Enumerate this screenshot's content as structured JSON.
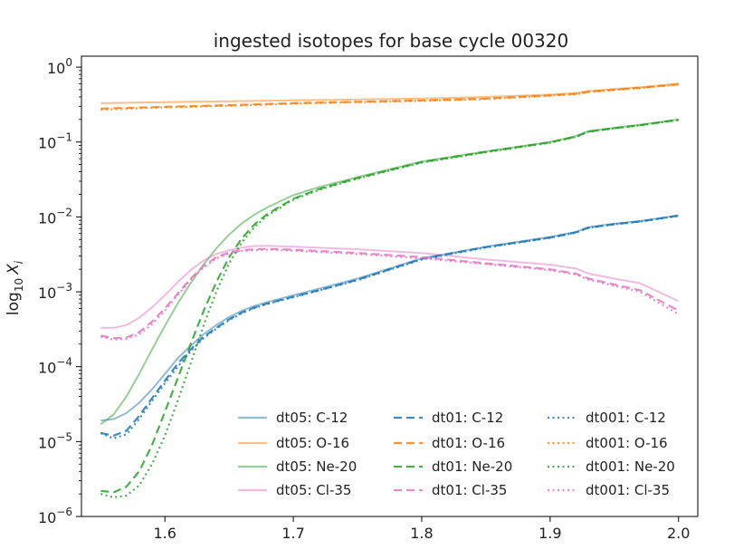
{
  "chart_data": {
    "type": "line",
    "title": "ingested isotopes for base cycle 00320",
    "xlabel": "",
    "ylabel": "log",
    "ylabel_sub": "10",
    "ylabel_var": "X",
    "ylabel_var_sub": "i",
    "yscale": "log",
    "xlim": [
      1.535,
      2.015
    ],
    "ylim": [
      1e-06,
      1.4
    ],
    "xticks": [
      1.6,
      1.7,
      1.8,
      1.9,
      2.0
    ],
    "xtick_labels": [
      "1.6",
      "1.7",
      "1.8",
      "1.9",
      "2.0"
    ],
    "yticks": [
      {
        "value": 1e-06,
        "base": "10",
        "exp": "−6"
      },
      {
        "value": 1e-05,
        "base": "10",
        "exp": "−5"
      },
      {
        "value": 0.0001,
        "base": "10",
        "exp": "−4"
      },
      {
        "value": 0.001,
        "base": "10",
        "exp": "−3"
      },
      {
        "value": 0.01,
        "base": "10",
        "exp": "−2"
      },
      {
        "value": 0.1,
        "base": "10",
        "exp": "−1"
      },
      {
        "value": 1,
        "base": "10",
        "exp": "0"
      }
    ],
    "grid": false,
    "legend_position": "lower-right",
    "legend_columns": 3,
    "colors": {
      "C-12": "#1f77b4",
      "O-16": "#ff7f0e",
      "Ne-20": "#2ca02c",
      "Cl-35": "#e377c2"
    },
    "styles": {
      "dt05": "solid",
      "dt01": "dashed",
      "dt001": "dotted"
    },
    "series": [
      {
        "name": "dt05: C-12",
        "run": "dt05",
        "isotope": "C-12",
        "x": [
          1.55,
          1.56,
          1.57,
          1.58,
          1.59,
          1.6,
          1.61,
          1.62,
          1.63,
          1.64,
          1.65,
          1.66,
          1.67,
          1.68,
          1.7,
          1.72,
          1.75,
          1.8,
          1.85,
          1.9,
          1.92,
          1.93,
          1.95,
          1.97,
          2.0
        ],
        "y": [
          1.9e-05,
          2e-05,
          2.4e-05,
          3.3e-05,
          5e-05,
          8e-05,
          0.00013,
          0.00019,
          0.00027,
          0.00036,
          0.00046,
          0.00056,
          0.00065,
          0.00073,
          0.0009,
          0.0011,
          0.0015,
          0.0028,
          0.004,
          0.0054,
          0.0063,
          0.0073,
          0.0081,
          0.0088,
          0.0105
        ]
      },
      {
        "name": "dt05: O-16",
        "run": "dt05",
        "isotope": "O-16",
        "x": [
          1.55,
          1.6,
          1.65,
          1.7,
          1.75,
          1.8,
          1.85,
          1.9,
          1.92,
          1.93,
          1.95,
          1.97,
          2.0
        ],
        "y": [
          0.33,
          0.34,
          0.35,
          0.36,
          0.37,
          0.38,
          0.4,
          0.43,
          0.45,
          0.48,
          0.51,
          0.54,
          0.6
        ]
      },
      {
        "name": "dt05: Ne-20",
        "run": "dt05",
        "isotope": "Ne-20",
        "x": [
          1.55,
          1.56,
          1.57,
          1.58,
          1.59,
          1.6,
          1.61,
          1.62,
          1.63,
          1.64,
          1.65,
          1.66,
          1.67,
          1.68,
          1.7,
          1.72,
          1.75,
          1.8,
          1.85,
          1.9,
          1.92,
          1.93,
          1.95,
          1.97,
          2.0
        ],
        "y": [
          1.7e-05,
          2.3e-05,
          4e-05,
          8e-05,
          0.00017,
          0.00035,
          0.0007,
          0.0013,
          0.0023,
          0.0038,
          0.0058,
          0.0082,
          0.0108,
          0.0135,
          0.0195,
          0.025,
          0.034,
          0.055,
          0.075,
          0.1,
          0.12,
          0.14,
          0.155,
          0.17,
          0.2
        ]
      },
      {
        "name": "dt05: Cl-35",
        "run": "dt05",
        "isotope": "Cl-35",
        "x": [
          1.55,
          1.56,
          1.57,
          1.58,
          1.59,
          1.6,
          1.61,
          1.62,
          1.63,
          1.64,
          1.65,
          1.66,
          1.67,
          1.68,
          1.7,
          1.75,
          1.8,
          1.85,
          1.9,
          1.92,
          1.93,
          1.95,
          1.97,
          2.0
        ],
        "y": [
          0.00033,
          0.00033,
          0.00036,
          0.00045,
          0.00062,
          0.0009,
          0.00135,
          0.00195,
          0.0026,
          0.0032,
          0.0036,
          0.0039,
          0.0041,
          0.0041,
          0.004,
          0.0037,
          0.0033,
          0.0027,
          0.0023,
          0.00205,
          0.00175,
          0.0015,
          0.0013,
          0.00075
        ]
      },
      {
        "name": "dt01: C-12",
        "run": "dt01",
        "isotope": "C-12",
        "x": [
          1.55,
          1.56,
          1.57,
          1.58,
          1.59,
          1.6,
          1.61,
          1.62,
          1.63,
          1.64,
          1.65,
          1.66,
          1.67,
          1.68,
          1.7,
          1.72,
          1.75,
          1.8,
          1.85,
          1.9,
          1.92,
          1.93,
          1.95,
          1.97,
          2.0
        ],
        "y": [
          1.3e-05,
          1.2e-05,
          1.4e-05,
          2.2e-05,
          3.8e-05,
          6.5e-05,
          0.00011,
          0.00017,
          0.00025,
          0.00033,
          0.00043,
          0.00053,
          0.00062,
          0.0007,
          0.00086,
          0.00105,
          0.00145,
          0.00275,
          0.00395,
          0.0053,
          0.0062,
          0.0072,
          0.008,
          0.0087,
          0.0104
        ]
      },
      {
        "name": "dt01: O-16",
        "run": "dt01",
        "isotope": "O-16",
        "x": [
          1.55,
          1.6,
          1.65,
          1.7,
          1.75,
          1.8,
          1.85,
          1.9,
          1.92,
          1.93,
          1.95,
          1.97,
          2.0
        ],
        "y": [
          0.28,
          0.295,
          0.31,
          0.33,
          0.345,
          0.36,
          0.38,
          0.42,
          0.44,
          0.47,
          0.5,
          0.53,
          0.59
        ]
      },
      {
        "name": "dt01: Ne-20",
        "run": "dt01",
        "isotope": "Ne-20",
        "x": [
          1.55,
          1.56,
          1.57,
          1.58,
          1.59,
          1.6,
          1.61,
          1.62,
          1.63,
          1.64,
          1.65,
          1.66,
          1.67,
          1.68,
          1.7,
          1.72,
          1.75,
          1.8,
          1.85,
          1.9,
          1.92,
          1.93,
          1.95,
          1.97,
          2.0
        ],
        "y": [
          2.2e-06,
          2.1e-06,
          2.5e-06,
          4e-06,
          9e-06,
          2.5e-05,
          7e-05,
          0.0002,
          0.00055,
          0.00135,
          0.0029,
          0.0052,
          0.008,
          0.011,
          0.0175,
          0.0235,
          0.033,
          0.054,
          0.074,
          0.099,
          0.118,
          0.138,
          0.153,
          0.168,
          0.198
        ]
      },
      {
        "name": "dt01: Cl-35",
        "run": "dt01",
        "isotope": "Cl-35",
        "x": [
          1.55,
          1.56,
          1.57,
          1.58,
          1.59,
          1.6,
          1.61,
          1.62,
          1.63,
          1.64,
          1.65,
          1.66,
          1.67,
          1.68,
          1.7,
          1.75,
          1.8,
          1.85,
          1.9,
          1.92,
          1.93,
          1.95,
          1.97,
          2.0
        ],
        "y": [
          0.00026,
          0.00024,
          0.000245,
          0.00029,
          0.0004,
          0.0006,
          0.00095,
          0.0015,
          0.0022,
          0.0029,
          0.00335,
          0.0036,
          0.0037,
          0.00375,
          0.00365,
          0.0033,
          0.0029,
          0.0024,
          0.002,
          0.00175,
          0.0015,
          0.00125,
          0.00105,
          0.00056
        ]
      },
      {
        "name": "dt001: C-12",
        "run": "dt001",
        "isotope": "C-12",
        "x": [
          1.55,
          1.56,
          1.57,
          1.58,
          1.59,
          1.6,
          1.61,
          1.62,
          1.63,
          1.64,
          1.65,
          1.66,
          1.67,
          1.68,
          1.7,
          1.72,
          1.75,
          1.8,
          1.85,
          1.9,
          1.92,
          1.93,
          1.95,
          1.97,
          2.0
        ],
        "y": [
          1.3e-05,
          1.1e-05,
          1.25e-05,
          2e-05,
          3.5e-05,
          6e-05,
          0.0001,
          0.00016,
          0.00024,
          0.00032,
          0.00042,
          0.00052,
          0.00061,
          0.00069,
          0.00085,
          0.00104,
          0.00143,
          0.0027,
          0.0039,
          0.00525,
          0.00615,
          0.00715,
          0.00795,
          0.00865,
          0.0103
        ]
      },
      {
        "name": "dt001: O-16",
        "run": "dt001",
        "isotope": "O-16",
        "x": [
          1.55,
          1.6,
          1.65,
          1.7,
          1.75,
          1.8,
          1.85,
          1.9,
          1.92,
          1.93,
          1.95,
          1.97,
          2.0
        ],
        "y": [
          0.27,
          0.29,
          0.305,
          0.325,
          0.34,
          0.355,
          0.375,
          0.415,
          0.435,
          0.465,
          0.495,
          0.525,
          0.585
        ]
      },
      {
        "name": "dt001: Ne-20",
        "run": "dt001",
        "isotope": "Ne-20",
        "x": [
          1.55,
          1.56,
          1.57,
          1.58,
          1.59,
          1.6,
          1.61,
          1.62,
          1.63,
          1.64,
          1.65,
          1.66,
          1.67,
          1.68,
          1.7,
          1.72,
          1.75,
          1.8,
          1.85,
          1.9,
          1.92,
          1.93,
          1.95,
          1.97,
          2.0
        ],
        "y": [
          2e-06,
          1.8e-06,
          1.9e-06,
          2.6e-06,
          5e-06,
          1.2e-05,
          3.5e-05,
          0.00011,
          0.00035,
          0.001,
          0.0024,
          0.0046,
          0.0074,
          0.0105,
          0.017,
          0.023,
          0.0325,
          0.053,
          0.073,
          0.098,
          0.117,
          0.137,
          0.152,
          0.167,
          0.197
        ]
      },
      {
        "name": "dt001: Cl-35",
        "run": "dt001",
        "isotope": "Cl-35",
        "x": [
          1.55,
          1.56,
          1.57,
          1.58,
          1.59,
          1.6,
          1.61,
          1.62,
          1.63,
          1.64,
          1.65,
          1.66,
          1.67,
          1.68,
          1.7,
          1.75,
          1.8,
          1.85,
          1.9,
          1.92,
          1.93,
          1.95,
          1.97,
          2.0
        ],
        "y": [
          0.00025,
          0.00023,
          0.000235,
          0.00027,
          0.00037,
          0.00056,
          0.0009,
          0.00145,
          0.0021,
          0.0028,
          0.00325,
          0.0035,
          0.0036,
          0.00365,
          0.00355,
          0.0032,
          0.0028,
          0.00235,
          0.00195,
          0.0017,
          0.00145,
          0.0012,
          0.001,
          0.0005
        ]
      }
    ]
  }
}
